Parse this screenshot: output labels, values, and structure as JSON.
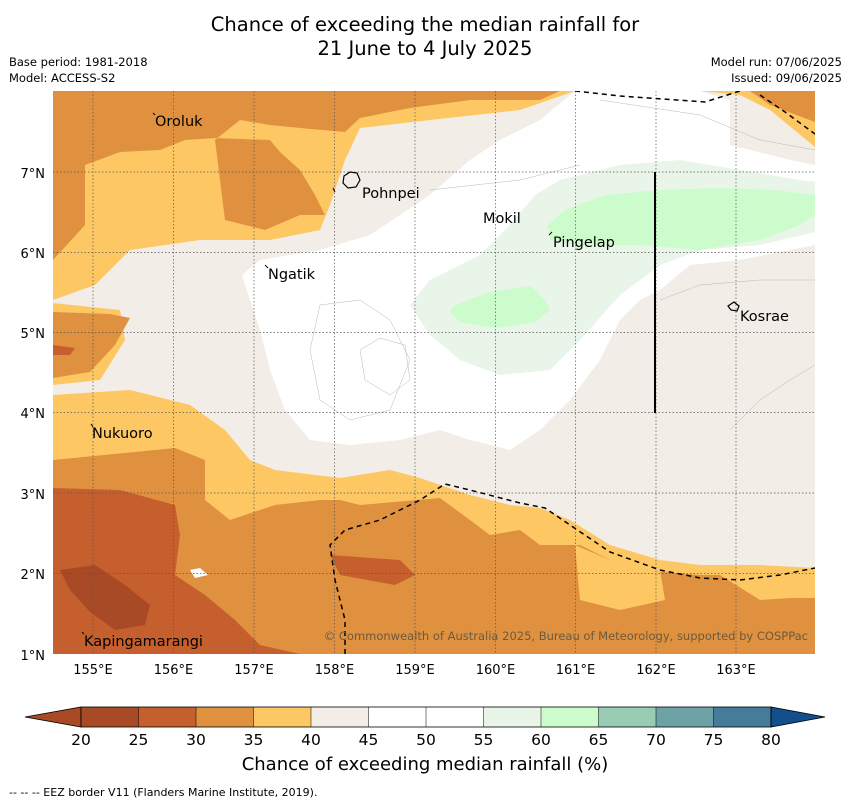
{
  "title": {
    "line1": "Chance of exceeding the median rainfall for",
    "line2": "21 June to 4 July 2025"
  },
  "meta": {
    "base_period": "Base period: 1981-2018",
    "model": "Model: ACCESS-S2",
    "model_run": "Model run: 07/06/2025",
    "issued": "Issued: 09/06/2025"
  },
  "map": {
    "lon_ticks": [
      "155°E",
      "156°E",
      "157°E",
      "158°E",
      "159°E",
      "160°E",
      "161°E",
      "162°E",
      "163°E"
    ],
    "lat_ticks": [
      "1°N",
      "2°N",
      "3°N",
      "4°N",
      "5°N",
      "6°N",
      "7°N"
    ],
    "places": [
      {
        "name": "Oroluk"
      },
      {
        "name": "Pohnpei"
      },
      {
        "name": "Mokil"
      },
      {
        "name": "Pingelap"
      },
      {
        "name": "Ngatik"
      },
      {
        "name": "Kosrae"
      },
      {
        "name": "Nukuoro"
      },
      {
        "name": "Kapingamarangi"
      }
    ],
    "copyright": "© Commonwealth of Australia 2025, Bureau of Meteorology, supported by COSPPac"
  },
  "colorbar": {
    "ticks": [
      "20",
      "25",
      "30",
      "35",
      "40",
      "45",
      "50",
      "55",
      "60",
      "65",
      "70",
      "75",
      "80"
    ],
    "colors": [
      "#a84a26",
      "#c65f2e",
      "#e0913f",
      "#fdc864",
      "#f2ede7",
      "#ffffff",
      "#ffffff",
      "#e9f5e8",
      "#ccfccc",
      "#99ccb4",
      "#6da3a6",
      "#447c9a",
      "#134f8c"
    ],
    "label": "Chance of exceeding median rainfall (%)"
  },
  "footnote": "--  --  -- EEZ border V11 (Flanders Marine Institute, 2019)."
}
